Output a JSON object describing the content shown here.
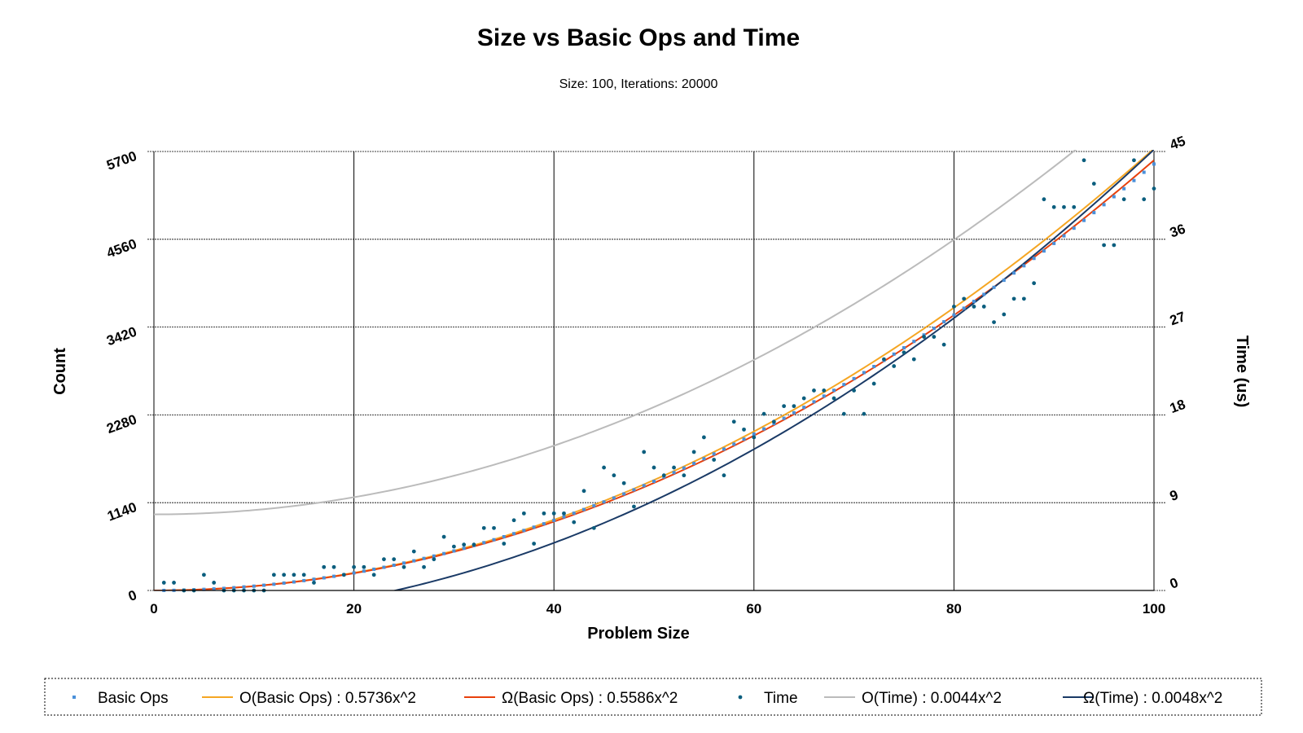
{
  "chart_data": {
    "type": "scatter",
    "title": "Size vs Basic Ops and Time",
    "subtitle": "Size: 100, Iterations: 20000",
    "xlabel": "Problem Size",
    "ylabel_left": "Count",
    "ylabel_right": "Time (us)",
    "xlim": [
      0,
      100
    ],
    "ylim_left": [
      0,
      5700
    ],
    "ylim_right": [
      0,
      45
    ],
    "x_ticks": [
      "0",
      "20",
      "40",
      "60",
      "80",
      "100"
    ],
    "y_left_ticks": [
      "0",
      "1140",
      "2280",
      "3420",
      "4560",
      "5700"
    ],
    "y_right_ticks": [
      "0",
      "9",
      "18",
      "27",
      "36",
      "45"
    ],
    "grid": true,
    "legend_position": "bottom",
    "series": [
      {
        "name": "Basic Ops",
        "kind": "scatter",
        "axis": "left",
        "color": "#4a90d9",
        "x": [
          1,
          2,
          3,
          4,
          5,
          6,
          7,
          8,
          9,
          10,
          11,
          12,
          13,
          14,
          15,
          16,
          17,
          18,
          19,
          20,
          21,
          22,
          23,
          24,
          25,
          26,
          27,
          28,
          29,
          30,
          31,
          32,
          33,
          34,
          35,
          36,
          37,
          38,
          39,
          40,
          41,
          42,
          43,
          44,
          45,
          46,
          47,
          48,
          49,
          50,
          51,
          52,
          53,
          54,
          55,
          56,
          57,
          58,
          59,
          60,
          61,
          62,
          63,
          64,
          65,
          66,
          67,
          68,
          69,
          70,
          71,
          72,
          73,
          74,
          75,
          76,
          77,
          78,
          79,
          80,
          81,
          82,
          83,
          84,
          85,
          86,
          87,
          88,
          89,
          90,
          91,
          92,
          93,
          94,
          95,
          96,
          97,
          98,
          99,
          100
        ],
        "y": [
          1,
          2,
          5,
          9,
          14,
          20,
          27,
          36,
          46,
          56,
          68,
          81,
          96,
          111,
          128,
          146,
          164,
          184,
          205,
          228,
          251,
          276,
          301,
          328,
          356,
          385,
          416,
          447,
          479,
          513,
          548,
          584,
          621,
          659,
          698,
          738,
          779,
          822,
          866,
          910,
          956,
          1003,
          1051,
          1100,
          1150,
          1201,
          1254,
          1307,
          1361,
          1417,
          1474,
          1531,
          1590,
          1650,
          1711,
          1773,
          1836,
          1900,
          1965,
          2031,
          2098,
          2167,
          2236,
          2307,
          2378,
          2450,
          2524,
          2599,
          2674,
          2751,
          2829,
          2908,
          2988,
          3069,
          3151,
          3234,
          3318,
          3403,
          3489,
          3577,
          3665,
          3754,
          3845,
          3936,
          4028,
          4122,
          4216,
          4312,
          4408,
          4506,
          4604,
          4704,
          4805,
          4906,
          5009,
          5113,
          5217,
          5323,
          5430,
          5537
        ]
      },
      {
        "name": "O(Basic Ops) : 0.5736x^2",
        "kind": "line",
        "axis": "left",
        "color": "#f5a623",
        "coef": 0.5736,
        "offset": 0
      },
      {
        "name": "Ω(Basic Ops) : 0.5586x^2",
        "kind": "line",
        "axis": "left",
        "color": "#e8400c",
        "coef": 0.5586,
        "offset": 0
      },
      {
        "name": "Time",
        "kind": "scatter",
        "axis": "right",
        "color": "#0b5e7e",
        "x": [
          1,
          2,
          3,
          4,
          5,
          6,
          7,
          8,
          9,
          10,
          11,
          12,
          13,
          14,
          15,
          16,
          17,
          18,
          19,
          20,
          21,
          22,
          23,
          24,
          25,
          26,
          27,
          28,
          29,
          30,
          31,
          32,
          33,
          34,
          35,
          36,
          37,
          38,
          39,
          40,
          41,
          42,
          43,
          44,
          45,
          46,
          47,
          48,
          49,
          50,
          51,
          52,
          53,
          54,
          55,
          56,
          57,
          58,
          59,
          60,
          61,
          62,
          63,
          64,
          65,
          66,
          67,
          68,
          69,
          70,
          71,
          72,
          73,
          74,
          75,
          76,
          77,
          78,
          79,
          80,
          81,
          82,
          83,
          84,
          85,
          86,
          87,
          88,
          89,
          90,
          91,
          92,
          93,
          94,
          95,
          96,
          97,
          98,
          99,
          100
        ],
        "y": [
          0.8,
          0.8,
          0,
          0,
          1.6,
          0.8,
          0,
          0,
          0,
          0,
          0,
          1.6,
          1.6,
          1.6,
          1.6,
          0.8,
          2.4,
          2.4,
          1.6,
          2.4,
          2.4,
          1.6,
          3.2,
          3.2,
          2.4,
          4.0,
          2.4,
          3.2,
          5.5,
          4.5,
          4.7,
          4.7,
          6.4,
          6.4,
          4.8,
          7.2,
          7.9,
          4.8,
          7.9,
          7.9,
          7.9,
          7.0,
          10.2,
          6.4,
          12.6,
          11.8,
          11.0,
          8.6,
          14.2,
          12.6,
          11.8,
          12.6,
          11.8,
          14.2,
          15.7,
          13.4,
          11.8,
          17.3,
          16.5,
          15.7,
          18.1,
          17.3,
          18.9,
          18.9,
          19.7,
          20.5,
          20.5,
          19.7,
          18.1,
          20.5,
          18.1,
          21.2,
          23.7,
          23.0,
          24.4,
          23.7,
          26.0,
          26.0,
          25.2,
          29.1,
          29.9,
          29.1,
          29.1,
          27.5,
          28.3,
          29.9,
          29.9,
          31.5,
          40.1,
          39.3,
          39.3,
          39.3,
          44.1,
          41.7,
          35.4,
          35.4,
          40.1,
          44.1,
          40.1,
          41.2
        ]
      },
      {
        "name": "O(Time) : 0.0044x^2",
        "kind": "line",
        "axis": "right",
        "color": "#bbbbbb",
        "coef": 0.0044,
        "offset": 7.8
      },
      {
        "name": "Ω(Time) : 0.0048x^2",
        "kind": "line",
        "axis": "right",
        "color": "#1a3a66",
        "coef": 0.0048,
        "offset": -2.8
      }
    ]
  }
}
